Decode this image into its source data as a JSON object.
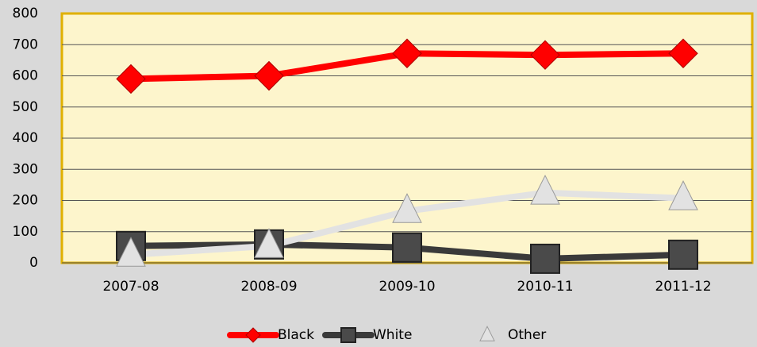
{
  "chart_data": {
    "type": "line",
    "categories": [
      "2007-08",
      "2008-09",
      "2009-10",
      "2010-11",
      "2011-12"
    ],
    "series": [
      {
        "name": "Black",
        "color": "#ff0000",
        "marker": "diamond",
        "values": [
          590,
          600,
          672,
          667,
          672
        ]
      },
      {
        "name": "White",
        "color": "#3a3a3a",
        "marker": "square",
        "values": [
          54,
          59,
          49,
          13,
          26
        ]
      },
      {
        "name": "Other",
        "color": "#e2e2e2",
        "marker": "triangle",
        "values": [
          26,
          54,
          166,
          225,
          207
        ]
      }
    ],
    "ylim": [
      0,
      800
    ],
    "yticks": [
      0,
      100,
      200,
      300,
      400,
      500,
      600,
      700,
      800
    ],
    "grid": true,
    "legend": "bottom"
  }
}
